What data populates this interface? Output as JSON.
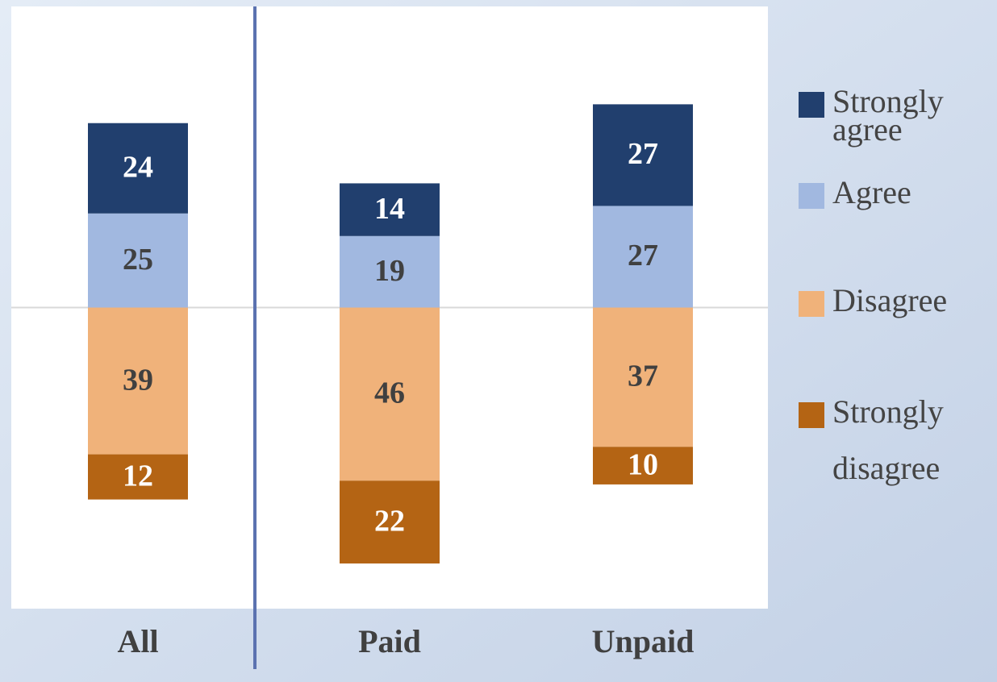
{
  "chart_data": {
    "type": "diverging-bar",
    "categories": [
      "All",
      "Paid",
      "Unpaid"
    ],
    "series": [
      {
        "name": "Strongly agree",
        "color": "#213f6e",
        "values": [
          24,
          14,
          27
        ]
      },
      {
        "name": "Agree",
        "color": "#a1b8e0",
        "values": [
          25,
          19,
          27
        ]
      },
      {
        "name": "Disagree",
        "color": "#f0b27a",
        "values": [
          -39,
          -46,
          -37
        ],
        "value_labels": [
          "39",
          "46",
          "37"
        ]
      },
      {
        "name": "Strongly disagree",
        "color": "#b46414",
        "values": [
          -12,
          -22,
          -10
        ],
        "value_labels": [
          "12",
          "22",
          "10"
        ]
      }
    ],
    "ylim": [
      -80,
      80
    ]
  }
}
